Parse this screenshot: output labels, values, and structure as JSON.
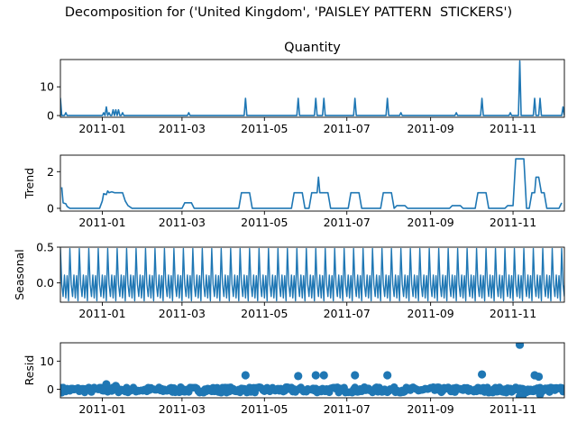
{
  "figure": {
    "title": "Decomposition for ('United Kingdom', 'PAISLEY PATTERN  STICKERS')"
  },
  "colors": {
    "series": "#1f77b4",
    "axis": "#000000",
    "background": "#ffffff"
  },
  "chart_data": [
    {
      "type": "line",
      "panel": "observed",
      "title": "Quantity",
      "ylabel": "",
      "xlim": [
        "2011-12-01",
        "2011-12-09"
      ],
      "x_range": [
        "2010-12-01",
        "2011-12-09"
      ],
      "ylim": [
        -0.6,
        19.5
      ],
      "yticks": [
        0,
        10
      ],
      "xtick_labels": [
        "2011-01",
        "2011-03",
        "2011-05",
        "2011-07",
        "2011-09",
        "2011-11"
      ],
      "baseline": 0,
      "spikes": [
        {
          "x": "2010-12-01",
          "y": 6
        },
        {
          "x": "2010-12-05",
          "y": 1
        },
        {
          "x": "2011-01-02",
          "y": 1
        },
        {
          "x": "2011-01-04",
          "y": 3
        },
        {
          "x": "2011-01-06",
          "y": 1
        },
        {
          "x": "2011-01-09",
          "y": 2
        },
        {
          "x": "2011-01-11",
          "y": 2
        },
        {
          "x": "2011-01-13",
          "y": 2
        },
        {
          "x": "2011-01-16",
          "y": 1
        },
        {
          "x": "2011-03-06",
          "y": 1
        },
        {
          "x": "2011-04-17",
          "y": 6
        },
        {
          "x": "2011-05-26",
          "y": 6
        },
        {
          "x": "2011-06-08",
          "y": 6
        },
        {
          "x": "2011-06-14",
          "y": 6
        },
        {
          "x": "2011-07-07",
          "y": 6
        },
        {
          "x": "2011-07-31",
          "y": 6
        },
        {
          "x": "2011-08-10",
          "y": 1
        },
        {
          "x": "2011-09-20",
          "y": 1
        },
        {
          "x": "2011-10-09",
          "y": 6
        },
        {
          "x": "2011-10-30",
          "y": 1
        },
        {
          "x": "2011-11-06",
          "y": 19
        },
        {
          "x": "2011-11-17",
          "y": 6
        },
        {
          "x": "2011-11-21",
          "y": 6
        },
        {
          "x": "2011-12-08",
          "y": 3
        }
      ]
    },
    {
      "type": "line",
      "panel": "trend",
      "title": "",
      "ylabel": "Trend",
      "ylim": [
        -0.15,
        2.9
      ],
      "yticks": [
        0,
        2
      ],
      "xtick_labels": [
        "2011-01",
        "2011-03",
        "2011-05",
        "2011-07",
        "2011-09",
        "2011-11"
      ],
      "points": [
        [
          "2010-12-02",
          1.15
        ],
        [
          "2010-12-03",
          0.3
        ],
        [
          "2010-12-05",
          0.25
        ],
        [
          "2010-12-06",
          0.1
        ],
        [
          "2010-12-08",
          0.0
        ],
        [
          "2010-12-30",
          0.0
        ],
        [
          "2011-01-01",
          0.4
        ],
        [
          "2011-01-02",
          0.8
        ],
        [
          "2011-01-04",
          0.75
        ],
        [
          "2011-01-05",
          0.95
        ],
        [
          "2011-01-06",
          0.85
        ],
        [
          "2011-01-08",
          0.9
        ],
        [
          "2011-01-10",
          0.85
        ],
        [
          "2011-01-16",
          0.85
        ],
        [
          "2011-01-18",
          0.4
        ],
        [
          "2011-01-20",
          0.15
        ],
        [
          "2011-01-23",
          0.0
        ],
        [
          "2011-03-01",
          0.0
        ],
        [
          "2011-03-03",
          0.3
        ],
        [
          "2011-03-08",
          0.3
        ],
        [
          "2011-03-10",
          0.0
        ],
        [
          "2011-04-12",
          0.0
        ],
        [
          "2011-04-14",
          0.85
        ],
        [
          "2011-04-20",
          0.85
        ],
        [
          "2011-04-22",
          0.0
        ],
        [
          "2011-05-21",
          0.0
        ],
        [
          "2011-05-23",
          0.85
        ],
        [
          "2011-05-29",
          0.85
        ],
        [
          "2011-05-31",
          0.0
        ],
        [
          "2011-06-03",
          0.0
        ],
        [
          "2011-06-05",
          0.85
        ],
        [
          "2011-06-09",
          0.85
        ],
        [
          "2011-06-10",
          1.7
        ],
        [
          "2011-06-11",
          0.85
        ],
        [
          "2011-06-17",
          0.85
        ],
        [
          "2011-06-19",
          0.0
        ],
        [
          "2011-07-02",
          0.0
        ],
        [
          "2011-07-04",
          0.85
        ],
        [
          "2011-07-10",
          0.85
        ],
        [
          "2011-07-12",
          0.0
        ],
        [
          "2011-07-26",
          0.0
        ],
        [
          "2011-07-28",
          0.85
        ],
        [
          "2011-08-03",
          0.85
        ],
        [
          "2011-08-05",
          0.0
        ],
        [
          "2011-08-07",
          0.15
        ],
        [
          "2011-08-13",
          0.15
        ],
        [
          "2011-08-15",
          0.0
        ],
        [
          "2011-09-15",
          0.0
        ],
        [
          "2011-09-17",
          0.15
        ],
        [
          "2011-09-23",
          0.15
        ],
        [
          "2011-09-25",
          0.0
        ],
        [
          "2011-10-04",
          0.0
        ],
        [
          "2011-10-06",
          0.85
        ],
        [
          "2011-10-12",
          0.85
        ],
        [
          "2011-10-14",
          0.0
        ],
        [
          "2011-10-26",
          0.0
        ],
        [
          "2011-10-28",
          0.15
        ],
        [
          "2011-11-01",
          0.15
        ],
        [
          "2011-11-03",
          2.7
        ],
        [
          "2011-11-09",
          2.7
        ],
        [
          "2011-11-11",
          0.0
        ],
        [
          "2011-11-13",
          0.0
        ],
        [
          "2011-11-15",
          0.85
        ],
        [
          "2011-11-17",
          0.85
        ],
        [
          "2011-11-18",
          1.7
        ],
        [
          "2011-11-20",
          1.7
        ],
        [
          "2011-11-22",
          0.85
        ],
        [
          "2011-11-24",
          0.85
        ],
        [
          "2011-11-26",
          0.0
        ],
        [
          "2011-12-05",
          0.0
        ],
        [
          "2011-12-07",
          0.3
        ]
      ]
    },
    {
      "type": "line",
      "panel": "seasonal",
      "title": "",
      "ylabel": "Seasonal",
      "ylim": [
        -0.27,
        0.5
      ],
      "yticks": [
        0.0,
        0.5
      ],
      "ytick_labels": [
        "0.0",
        "0.5"
      ],
      "xtick_labels": [
        "2011-01",
        "2011-03",
        "2011-05",
        "2011-07",
        "2011-09",
        "2011-11"
      ],
      "period_days": 7,
      "cycle_values": [
        0.48,
        -0.02,
        -0.19,
        0.11,
        -0.21,
        0.1,
        -0.25
      ]
    },
    {
      "type": "scatter",
      "panel": "resid",
      "title": "",
      "ylabel": "Resid",
      "ylim": [
        -3.0,
        16.5
      ],
      "yticks": [
        0,
        10
      ],
      "xtick_labels": [
        "2011-01",
        "2011-03",
        "2011-05",
        "2011-07",
        "2011-09",
        "2011-11"
      ],
      "noise_band": [
        -1.2,
        0.8
      ],
      "outliers": [
        {
          "x": "2010-12-01",
          "y": 0.5
        },
        {
          "x": "2011-01-04",
          "y": 1.8
        },
        {
          "x": "2011-01-11",
          "y": 1.2
        },
        {
          "x": "2011-04-17",
          "y": 5.0
        },
        {
          "x": "2011-05-26",
          "y": 4.7
        },
        {
          "x": "2011-06-08",
          "y": 5.0
        },
        {
          "x": "2011-06-14",
          "y": 5.0
        },
        {
          "x": "2011-07-07",
          "y": 5.0
        },
        {
          "x": "2011-07-31",
          "y": 5.0
        },
        {
          "x": "2011-10-09",
          "y": 5.3
        },
        {
          "x": "2011-11-06",
          "y": 15.8
        },
        {
          "x": "2011-11-06",
          "y": -2.5
        },
        {
          "x": "2011-11-08",
          "y": -2.5
        },
        {
          "x": "2011-11-17",
          "y": 5.0
        },
        {
          "x": "2011-11-20",
          "y": 4.5
        },
        {
          "x": "2011-11-21",
          "y": -1.8
        }
      ]
    }
  ]
}
